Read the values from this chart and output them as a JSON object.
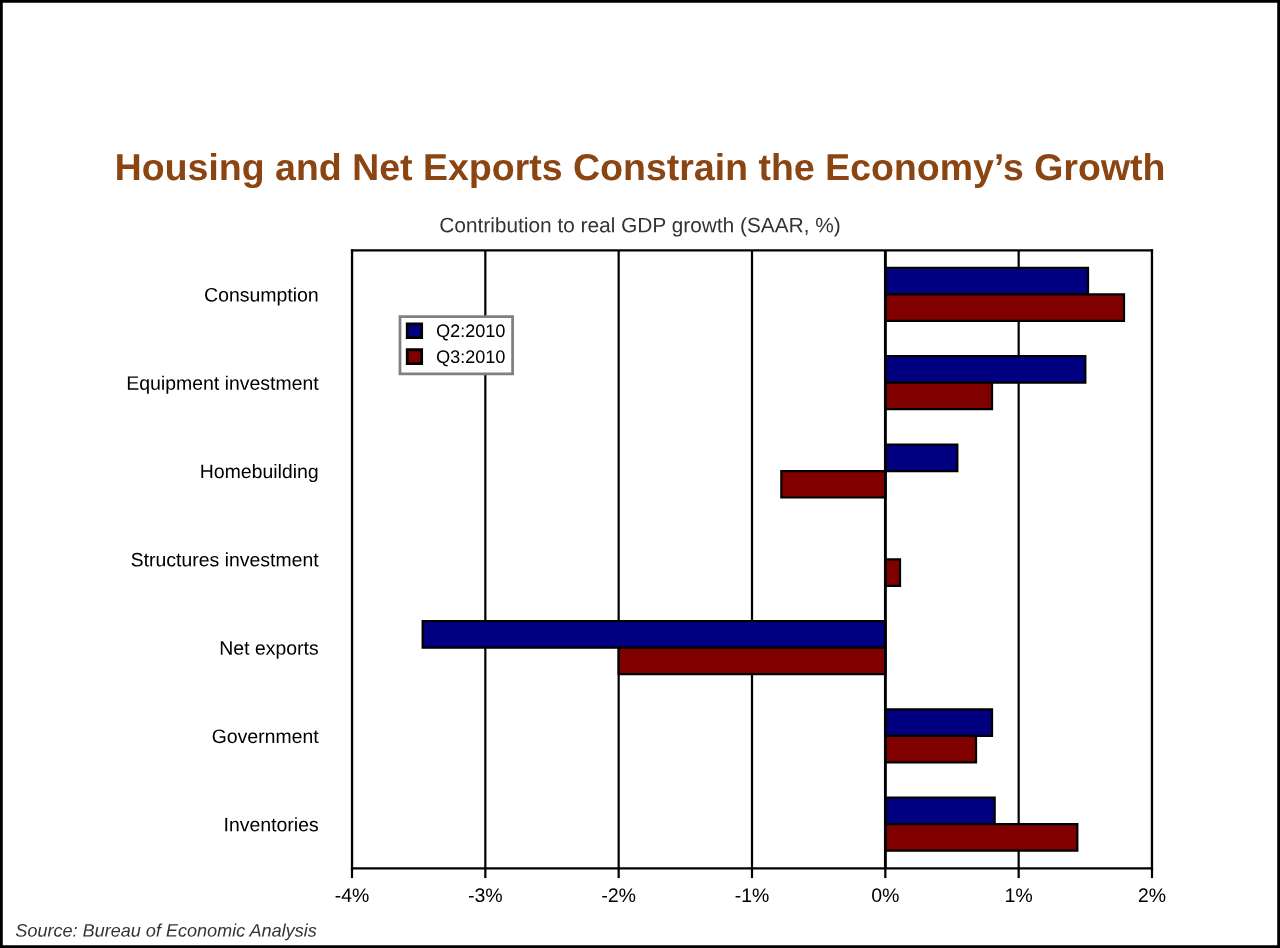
{
  "chart_data": {
    "type": "bar",
    "orientation": "horizontal",
    "title": "Housing and Net Exports Constrain the Economy’s Growth",
    "subtitle": "Contribution to real GDP growth (SAAR, %)",
    "categories": [
      "Consumption",
      "Equipment investment",
      "Homebuilding",
      "Structures investment",
      "Net exports",
      "Government",
      "Inventories"
    ],
    "series": [
      {
        "name": "Q2:2010",
        "color": "#000080",
        "values": [
          1.52,
          1.5,
          0.54,
          null,
          -3.47,
          0.8,
          0.82
        ]
      },
      {
        "name": "Q3:2010",
        "color": "#800000",
        "values": [
          1.79,
          0.8,
          -0.78,
          0.11,
          -2.0,
          0.68,
          1.44
        ]
      }
    ],
    "xlim": [
      -4,
      2
    ],
    "xticks": [
      {
        "value": -4,
        "label": "-4%"
      },
      {
        "value": -3,
        "label": "-3%"
      },
      {
        "value": -2,
        "label": "-2%"
      },
      {
        "value": -1,
        "label": "-1%"
      },
      {
        "value": 0,
        "label": "0%"
      },
      {
        "value": 1,
        "label": "1%"
      },
      {
        "value": 2,
        "label": "2%"
      }
    ],
    "grid": "x",
    "legend": "top left",
    "annotations": [
      "Source: Bureau of Economic Analysis"
    ]
  }
}
